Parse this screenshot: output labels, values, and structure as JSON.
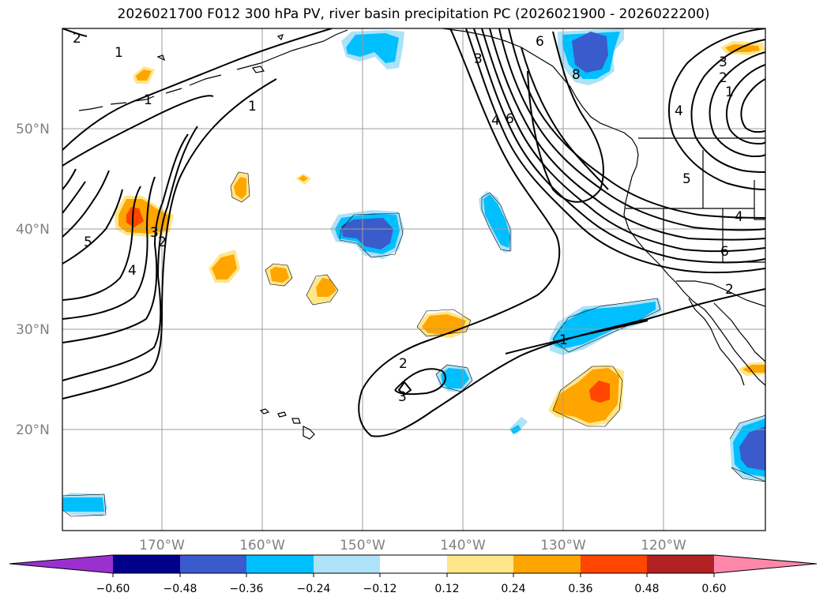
{
  "title": "2026021700 F012 300 hPa PV, river basin precipitation PC (2026021900 - 2026022200)",
  "colors": {
    "neg_060": "#9b30d0",
    "neg_048": "#00008b",
    "neg_036": "#3a5bcc",
    "neg_024": "#00bfff",
    "neg_012": "#ade2f8",
    "zero": "#ffffff",
    "pos_012": "#ffe68a",
    "pos_024": "#ffa500",
    "pos_036": "#ff4500",
    "pos_048": "#b22222",
    "pos_060": "#ff88aa"
  },
  "lat_labels": [
    "50°N",
    "40°N",
    "30°N",
    "20°N"
  ],
  "lon_labels": [
    "170°W",
    "160°W",
    "150°W",
    "140°W",
    "130°W",
    "120°W"
  ],
  "colorbar": {
    "ticks": [
      "−0.60",
      "−0.48",
      "−0.36",
      "−0.24",
      "−0.12",
      "0.12",
      "0.24",
      "0.36",
      "0.48",
      "0.60"
    ]
  },
  "pv_contour_labels": [
    {
      "id": "l2a",
      "text": "2"
    },
    {
      "id": "l1a",
      "text": "1"
    },
    {
      "id": "l1b",
      "text": "1"
    },
    {
      "id": "l1c",
      "text": "1"
    },
    {
      "id": "l5a",
      "text": "5"
    },
    {
      "id": "l3a",
      "text": "3"
    },
    {
      "id": "l2b",
      "text": "2"
    },
    {
      "id": "l4a",
      "text": "4"
    },
    {
      "id": "l3b",
      "text": "3"
    },
    {
      "id": "l4b",
      "text": "4"
    },
    {
      "id": "l6a",
      "text": "6"
    },
    {
      "id": "l6b",
      "text": "6"
    },
    {
      "id": "l8a",
      "text": "8"
    },
    {
      "id": "l3c",
      "text": "3"
    },
    {
      "id": "l2c",
      "text": "2"
    },
    {
      "id": "l1d",
      "text": "1"
    },
    {
      "id": "l4c",
      "text": "4"
    },
    {
      "id": "l5b",
      "text": "5"
    },
    {
      "id": "l4d",
      "text": "4"
    },
    {
      "id": "l6c",
      "text": "6"
    },
    {
      "id": "l2d",
      "text": "2"
    },
    {
      "id": "l1e",
      "text": "1"
    },
    {
      "id": "l2e",
      "text": "2"
    },
    {
      "id": "l3d",
      "text": "3"
    }
  ]
}
